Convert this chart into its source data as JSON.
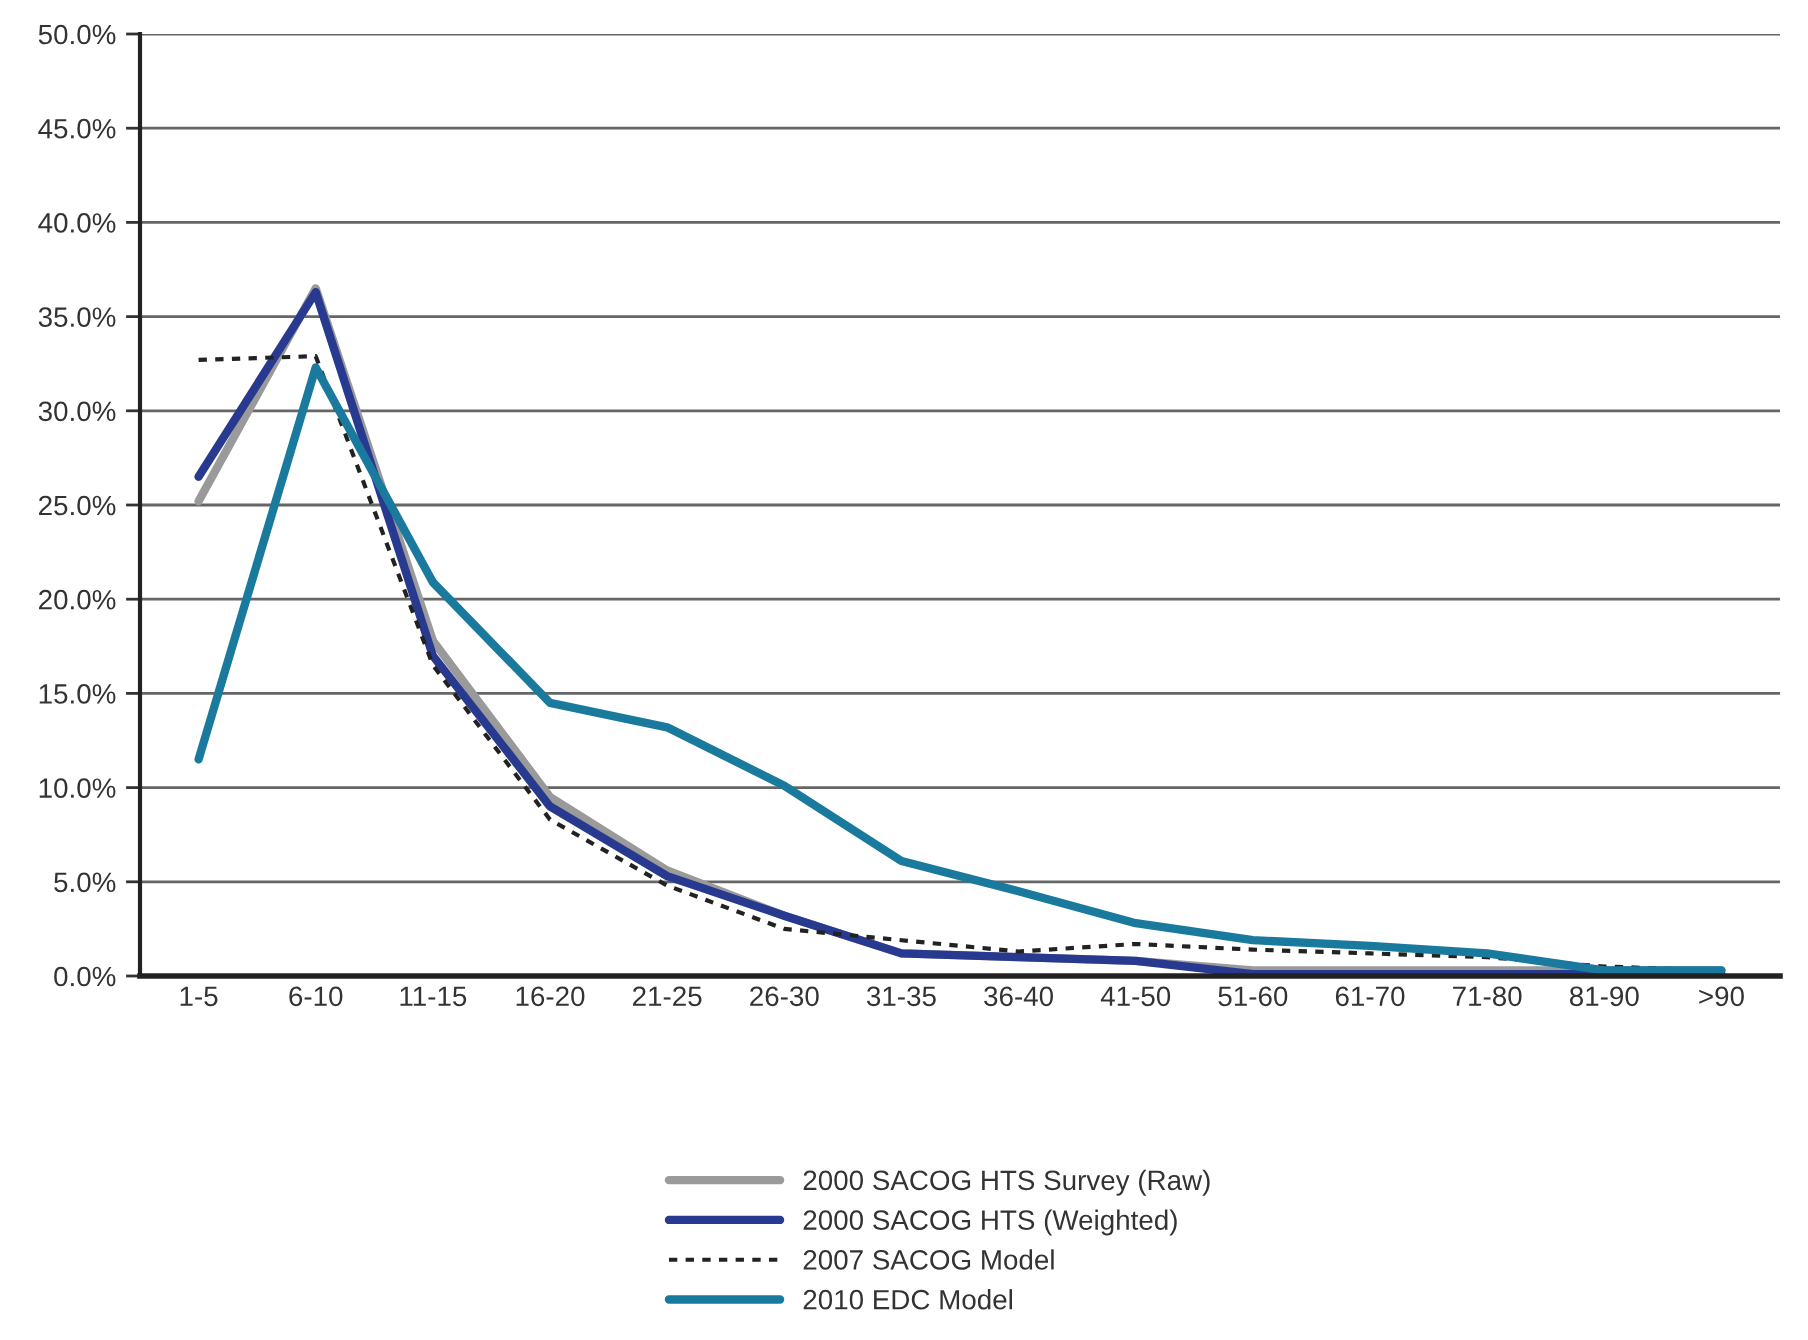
{
  "chart_data": {
    "type": "line",
    "categories": [
      "1-5",
      "6-10",
      "11-15",
      "16-20",
      "21-25",
      "26-30",
      "31-35",
      "36-40",
      "41-50",
      "51-60",
      "61-70",
      "71-80",
      "81-90",
      ">90"
    ],
    "series": [
      {
        "name": "2000 SACOG HTS Survey (Raw)",
        "color": "#9a9a9a",
        "line_style": "solid",
        "values": [
          25.2,
          36.5,
          17.8,
          9.5,
          5.6,
          3.2,
          1.2,
          1.0,
          0.8,
          0.3,
          0.3,
          0.3,
          0.3,
          0.3
        ]
      },
      {
        "name": "2000 SACOG HTS (Weighted)",
        "color": "#283a8f",
        "line_style": "solid",
        "values": [
          26.5,
          36.3,
          17.0,
          9.0,
          5.3,
          3.2,
          1.2,
          1.0,
          0.8,
          0.1,
          0.1,
          0.1,
          0.1,
          0.1
        ]
      },
      {
        "name": "2007 SACOG Model",
        "color": "#222222",
        "line_style": "dotted",
        "values": [
          32.7,
          32.9,
          16.5,
          8.3,
          4.8,
          2.5,
          1.9,
          1.3,
          1.7,
          1.4,
          1.2,
          1.0,
          0.5,
          0.3
        ]
      },
      {
        "name": "2010 EDC Model",
        "color": "#1a7a9e",
        "line_style": "solid",
        "values": [
          11.5,
          32.3,
          20.9,
          14.5,
          13.2,
          10.1,
          6.1,
          4.5,
          2.8,
          1.9,
          1.6,
          1.2,
          0.3,
          0.3
        ]
      }
    ],
    "ylim": [
      0,
      50
    ],
    "yticks": [
      {
        "value": 0,
        "label": "0.0%"
      },
      {
        "value": 5,
        "label": "5.0%"
      },
      {
        "value": 10,
        "label": "10.0%"
      },
      {
        "value": 15,
        "label": "15.0%"
      },
      {
        "value": 20,
        "label": "20.0%"
      },
      {
        "value": 25,
        "label": "25.0%"
      },
      {
        "value": 30,
        "label": "30.0%"
      },
      {
        "value": 35,
        "label": "35.0%"
      },
      {
        "value": 40,
        "label": "40.0%"
      },
      {
        "value": 45,
        "label": "45.0%"
      },
      {
        "value": 50,
        "label": "50.0%"
      }
    ],
    "grid": "y",
    "legend": "bottom",
    "marker": "none"
  }
}
